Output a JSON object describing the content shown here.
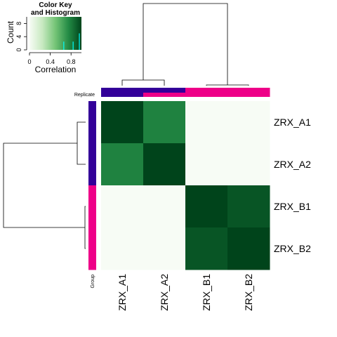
{
  "chart_data": {
    "type": "heatmap",
    "color_key": {
      "title_line1": "Color Key",
      "title_line2": "and Histogram",
      "xlabel": "Correlation",
      "ylabel": "Count",
      "x_ticks": [
        "0",
        "0.4",
        "0.8"
      ],
      "y_ticks": [
        "0",
        "4",
        "8"
      ],
      "x_range": [
        0,
        1
      ],
      "y_range": [
        0,
        10
      ],
      "histogram_lines": [
        {
          "x": 0.66,
          "count": 2.5
        },
        {
          "x": 0.84,
          "count": 2.5
        },
        {
          "x": 0.96,
          "count": 5.0
        }
      ],
      "color_stops": [
        "#f7fcf5",
        "#c7e9c0",
        "#74c476",
        "#238b45",
        "#00441b"
      ]
    },
    "rows": [
      "ZRX_A1",
      "ZRX_A2",
      "ZRX_B1",
      "ZRX_B2"
    ],
    "columns": [
      "ZRX_A1",
      "ZRX_A2",
      "ZRX_B1",
      "ZRX_B2"
    ],
    "values": [
      [
        1.0,
        0.78,
        0.0,
        0.0
      ],
      [
        0.78,
        1.0,
        0.0,
        0.0
      ],
      [
        0.0,
        0.0,
        1.0,
        0.94
      ],
      [
        0.0,
        0.0,
        0.94,
        1.0
      ]
    ],
    "column_annotation": {
      "label": "Replicate",
      "top_colors": [
        "#330099",
        "#330099",
        "#ee0088",
        "#ee0088"
      ],
      "bottom_colors": [
        "#330099",
        "#ee0088",
        "#ee0088",
        "#ee0088"
      ]
    },
    "row_annotation": {
      "label": "Group",
      "colors": [
        "#330099",
        "#330099",
        "#ee0088",
        "#ee0088"
      ]
    },
    "group_colors": {
      "A": "#330099",
      "B": "#ee0088"
    }
  }
}
